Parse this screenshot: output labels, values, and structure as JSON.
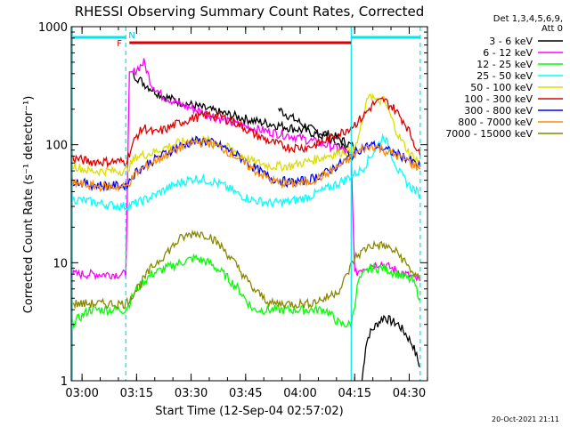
{
  "chart_data": {
    "type": "line",
    "title": "RHESSI Observing Summary Count Rates, Corrected",
    "xlabel": "Start Time (12-Sep-04 02:57:02)",
    "ylabel": "Corrected Count Rate (s⁻¹ detector⁻¹)",
    "yscale": "log",
    "ylim": [
      1,
      1000
    ],
    "xlim_minutes": [
      0,
      98
    ],
    "x_tick_labels": [
      "03:00",
      "03:15",
      "03:30",
      "03:45",
      "04:00",
      "04:15",
      "04:30"
    ],
    "y_tick_labels": [
      "1",
      "10",
      "100",
      "1000"
    ],
    "legend_header": [
      "Det 1,3,4,5,6,9,",
      "Att 0"
    ],
    "legend_position": "right",
    "footer": "20-Oct-2021 21:11",
    "flags": {
      "F": "F",
      "N": "N"
    },
    "series": [
      {
        "name": "3 - 6 keV",
        "color": "#000000",
        "points": [
          [
            80,
            1
          ],
          [
            81,
            2
          ],
          [
            82,
            2.5
          ],
          [
            84,
            3
          ],
          [
            86,
            3.5
          ],
          [
            88,
            3.2
          ],
          [
            90,
            3
          ],
          [
            92,
            2.5
          ],
          [
            94,
            2
          ],
          [
            96,
            1.3
          ]
        ],
        "early": [
          [
            57,
            200
          ],
          [
            62,
            160
          ],
          [
            67,
            130
          ],
          [
            72,
            120
          ],
          [
            78,
            95
          ]
        ],
        "peak": [
          [
            17,
            400
          ],
          [
            20,
            330
          ],
          [
            25,
            260
          ],
          [
            30,
            230
          ],
          [
            35,
            210
          ],
          [
            40,
            190
          ],
          [
            45,
            175
          ],
          [
            50,
            160
          ],
          [
            55,
            150
          ],
          [
            60,
            140
          ],
          [
            65,
            130
          ],
          [
            70,
            115
          ],
          [
            75,
            95
          ],
          [
            77,
            80
          ]
        ]
      },
      {
        "name": "6 - 12 keV",
        "color": "#ff00ff",
        "points": [
          [
            0,
            8
          ],
          [
            5,
            8
          ],
          [
            10,
            8
          ],
          [
            15,
            8
          ],
          [
            16,
            380
          ],
          [
            20,
            500
          ],
          [
            22,
            330
          ],
          [
            25,
            260
          ],
          [
            30,
            220
          ],
          [
            35,
            195
          ],
          [
            40,
            170
          ],
          [
            45,
            150
          ],
          [
            50,
            138
          ],
          [
            55,
            128
          ],
          [
            60,
            120
          ],
          [
            65,
            110
          ],
          [
            70,
            100
          ],
          [
            75,
            90
          ],
          [
            77,
            80
          ],
          [
            78,
            8
          ],
          [
            80,
            9
          ],
          [
            85,
            10
          ],
          [
            88,
            9
          ],
          [
            92,
            8
          ],
          [
            96,
            7
          ]
        ]
      },
      {
        "name": "12 - 25 keV",
        "color": "#00ff00",
        "points": [
          [
            0,
            3
          ],
          [
            5,
            4
          ],
          [
            10,
            4
          ],
          [
            15,
            4
          ],
          [
            18,
            6
          ],
          [
            22,
            8
          ],
          [
            26,
            9
          ],
          [
            30,
            10
          ],
          [
            34,
            11
          ],
          [
            38,
            10
          ],
          [
            42,
            8
          ],
          [
            46,
            6
          ],
          [
            50,
            4
          ],
          [
            55,
            4
          ],
          [
            60,
            4
          ],
          [
            65,
            4
          ],
          [
            70,
            4
          ],
          [
            74,
            3
          ],
          [
            77,
            3
          ],
          [
            79,
            7
          ],
          [
            82,
            9
          ],
          [
            86,
            9
          ],
          [
            90,
            8
          ],
          [
            94,
            7
          ],
          [
            96,
            5
          ]
        ]
      },
      {
        "name": "25 - 50 keV",
        "color": "#00ffff",
        "points": [
          [
            0,
            35
          ],
          [
            5,
            33
          ],
          [
            10,
            31
          ],
          [
            15,
            30
          ],
          [
            18,
            32
          ],
          [
            22,
            36
          ],
          [
            26,
            42
          ],
          [
            30,
            48
          ],
          [
            34,
            52
          ],
          [
            38,
            50
          ],
          [
            42,
            45
          ],
          [
            46,
            38
          ],
          [
            50,
            34
          ],
          [
            55,
            32
          ],
          [
            60,
            33
          ],
          [
            65,
            36
          ],
          [
            70,
            42
          ],
          [
            75,
            50
          ],
          [
            80,
            62
          ],
          [
            84,
            95
          ],
          [
            86,
            120
          ],
          [
            88,
            85
          ],
          [
            90,
            60
          ],
          [
            93,
            45
          ],
          [
            96,
            38
          ]
        ]
      },
      {
        "name": "50 - 100 keV",
        "color": "#dddd00",
        "points": [
          [
            0,
            68
          ],
          [
            5,
            60
          ],
          [
            10,
            60
          ],
          [
            15,
            60
          ],
          [
            18,
            80
          ],
          [
            22,
            85
          ],
          [
            26,
            95
          ],
          [
            30,
            105
          ],
          [
            34,
            110
          ],
          [
            38,
            108
          ],
          [
            42,
            98
          ],
          [
            46,
            85
          ],
          [
            50,
            72
          ],
          [
            55,
            66
          ],
          [
            60,
            66
          ],
          [
            65,
            72
          ],
          [
            70,
            80
          ],
          [
            75,
            88
          ],
          [
            78,
            90
          ],
          [
            80,
            150
          ],
          [
            82,
            280
          ],
          [
            84,
            230
          ],
          [
            86,
            240
          ],
          [
            88,
            170
          ],
          [
            90,
            120
          ],
          [
            93,
            85
          ],
          [
            96,
            70
          ]
        ]
      },
      {
        "name": "100 - 300 keV",
        "color": "#dd0000",
        "points": [
          [
            0,
            78
          ],
          [
            5,
            72
          ],
          [
            10,
            72
          ],
          [
            15,
            72
          ],
          [
            18,
            120
          ],
          [
            20,
            140
          ],
          [
            23,
            125
          ],
          [
            27,
            140
          ],
          [
            30,
            155
          ],
          [
            34,
            170
          ],
          [
            38,
            180
          ],
          [
            42,
            170
          ],
          [
            46,
            150
          ],
          [
            50,
            125
          ],
          [
            55,
            105
          ],
          [
            60,
            95
          ],
          [
            65,
            95
          ],
          [
            70,
            108
          ],
          [
            75,
            130
          ],
          [
            78,
            150
          ],
          [
            80,
            170
          ],
          [
            83,
            220
          ],
          [
            86,
            240
          ],
          [
            89,
            200
          ],
          [
            92,
            150
          ],
          [
            94,
            110
          ],
          [
            96,
            80
          ]
        ]
      },
      {
        "name": "300 - 800 keV",
        "color": "#0000ff",
        "points": [
          [
            0,
            50
          ],
          [
            5,
            46
          ],
          [
            10,
            45
          ],
          [
            15,
            45
          ],
          [
            18,
            60
          ],
          [
            22,
            72
          ],
          [
            26,
            85
          ],
          [
            30,
            98
          ],
          [
            34,
            108
          ],
          [
            38,
            106
          ],
          [
            42,
            95
          ],
          [
            46,
            80
          ],
          [
            50,
            65
          ],
          [
            55,
            52
          ],
          [
            60,
            48
          ],
          [
            65,
            50
          ],
          [
            70,
            58
          ],
          [
            75,
            72
          ],
          [
            78,
            85
          ],
          [
            80,
            95
          ],
          [
            83,
            100
          ],
          [
            86,
            92
          ],
          [
            89,
            85
          ],
          [
            92,
            78
          ],
          [
            96,
            65
          ]
        ]
      },
      {
        "name": "800 - 7000 keV",
        "color": "#ff8800",
        "points": [
          [
            0,
            48
          ],
          [
            5,
            45
          ],
          [
            10,
            44
          ],
          [
            15,
            44
          ],
          [
            18,
            58
          ],
          [
            22,
            70
          ],
          [
            26,
            82
          ],
          [
            30,
            95
          ],
          [
            34,
            105
          ],
          [
            38,
            104
          ],
          [
            42,
            92
          ],
          [
            46,
            77
          ],
          [
            50,
            62
          ],
          [
            55,
            50
          ],
          [
            60,
            46
          ],
          [
            65,
            48
          ],
          [
            70,
            56
          ],
          [
            75,
            70
          ],
          [
            78,
            82
          ],
          [
            80,
            92
          ],
          [
            83,
            98
          ],
          [
            86,
            90
          ],
          [
            89,
            82
          ],
          [
            92,
            75
          ],
          [
            96,
            62
          ]
        ]
      },
      {
        "name": "7000 - 15000 keV",
        "color": "#888800",
        "points": [
          [
            0,
            4.5
          ],
          [
            5,
            4.5
          ],
          [
            10,
            4.5
          ],
          [
            15,
            4.5
          ],
          [
            18,
            6
          ],
          [
            22,
            9
          ],
          [
            26,
            12
          ],
          [
            30,
            16
          ],
          [
            34,
            18
          ],
          [
            38,
            17
          ],
          [
            42,
            13
          ],
          [
            46,
            9
          ],
          [
            50,
            6
          ],
          [
            55,
            4.5
          ],
          [
            60,
            4.5
          ],
          [
            65,
            4.5
          ],
          [
            70,
            5
          ],
          [
            74,
            6
          ],
          [
            78,
            11
          ],
          [
            82,
            14
          ],
          [
            86,
            14
          ],
          [
            90,
            12
          ],
          [
            93,
            9
          ],
          [
            96,
            7
          ]
        ]
      }
    ],
    "time_bars": [
      {
        "label": "",
        "color": "#00e5ee",
        "segments": [
          [
            0,
            15
          ],
          [
            77,
            96
          ]
        ]
      },
      {
        "label": "",
        "color": "#dd0000",
        "segments": [
          [
            16,
            77
          ]
        ]
      }
    ],
    "markers_minutes": [
      15,
      77,
      96
    ]
  }
}
